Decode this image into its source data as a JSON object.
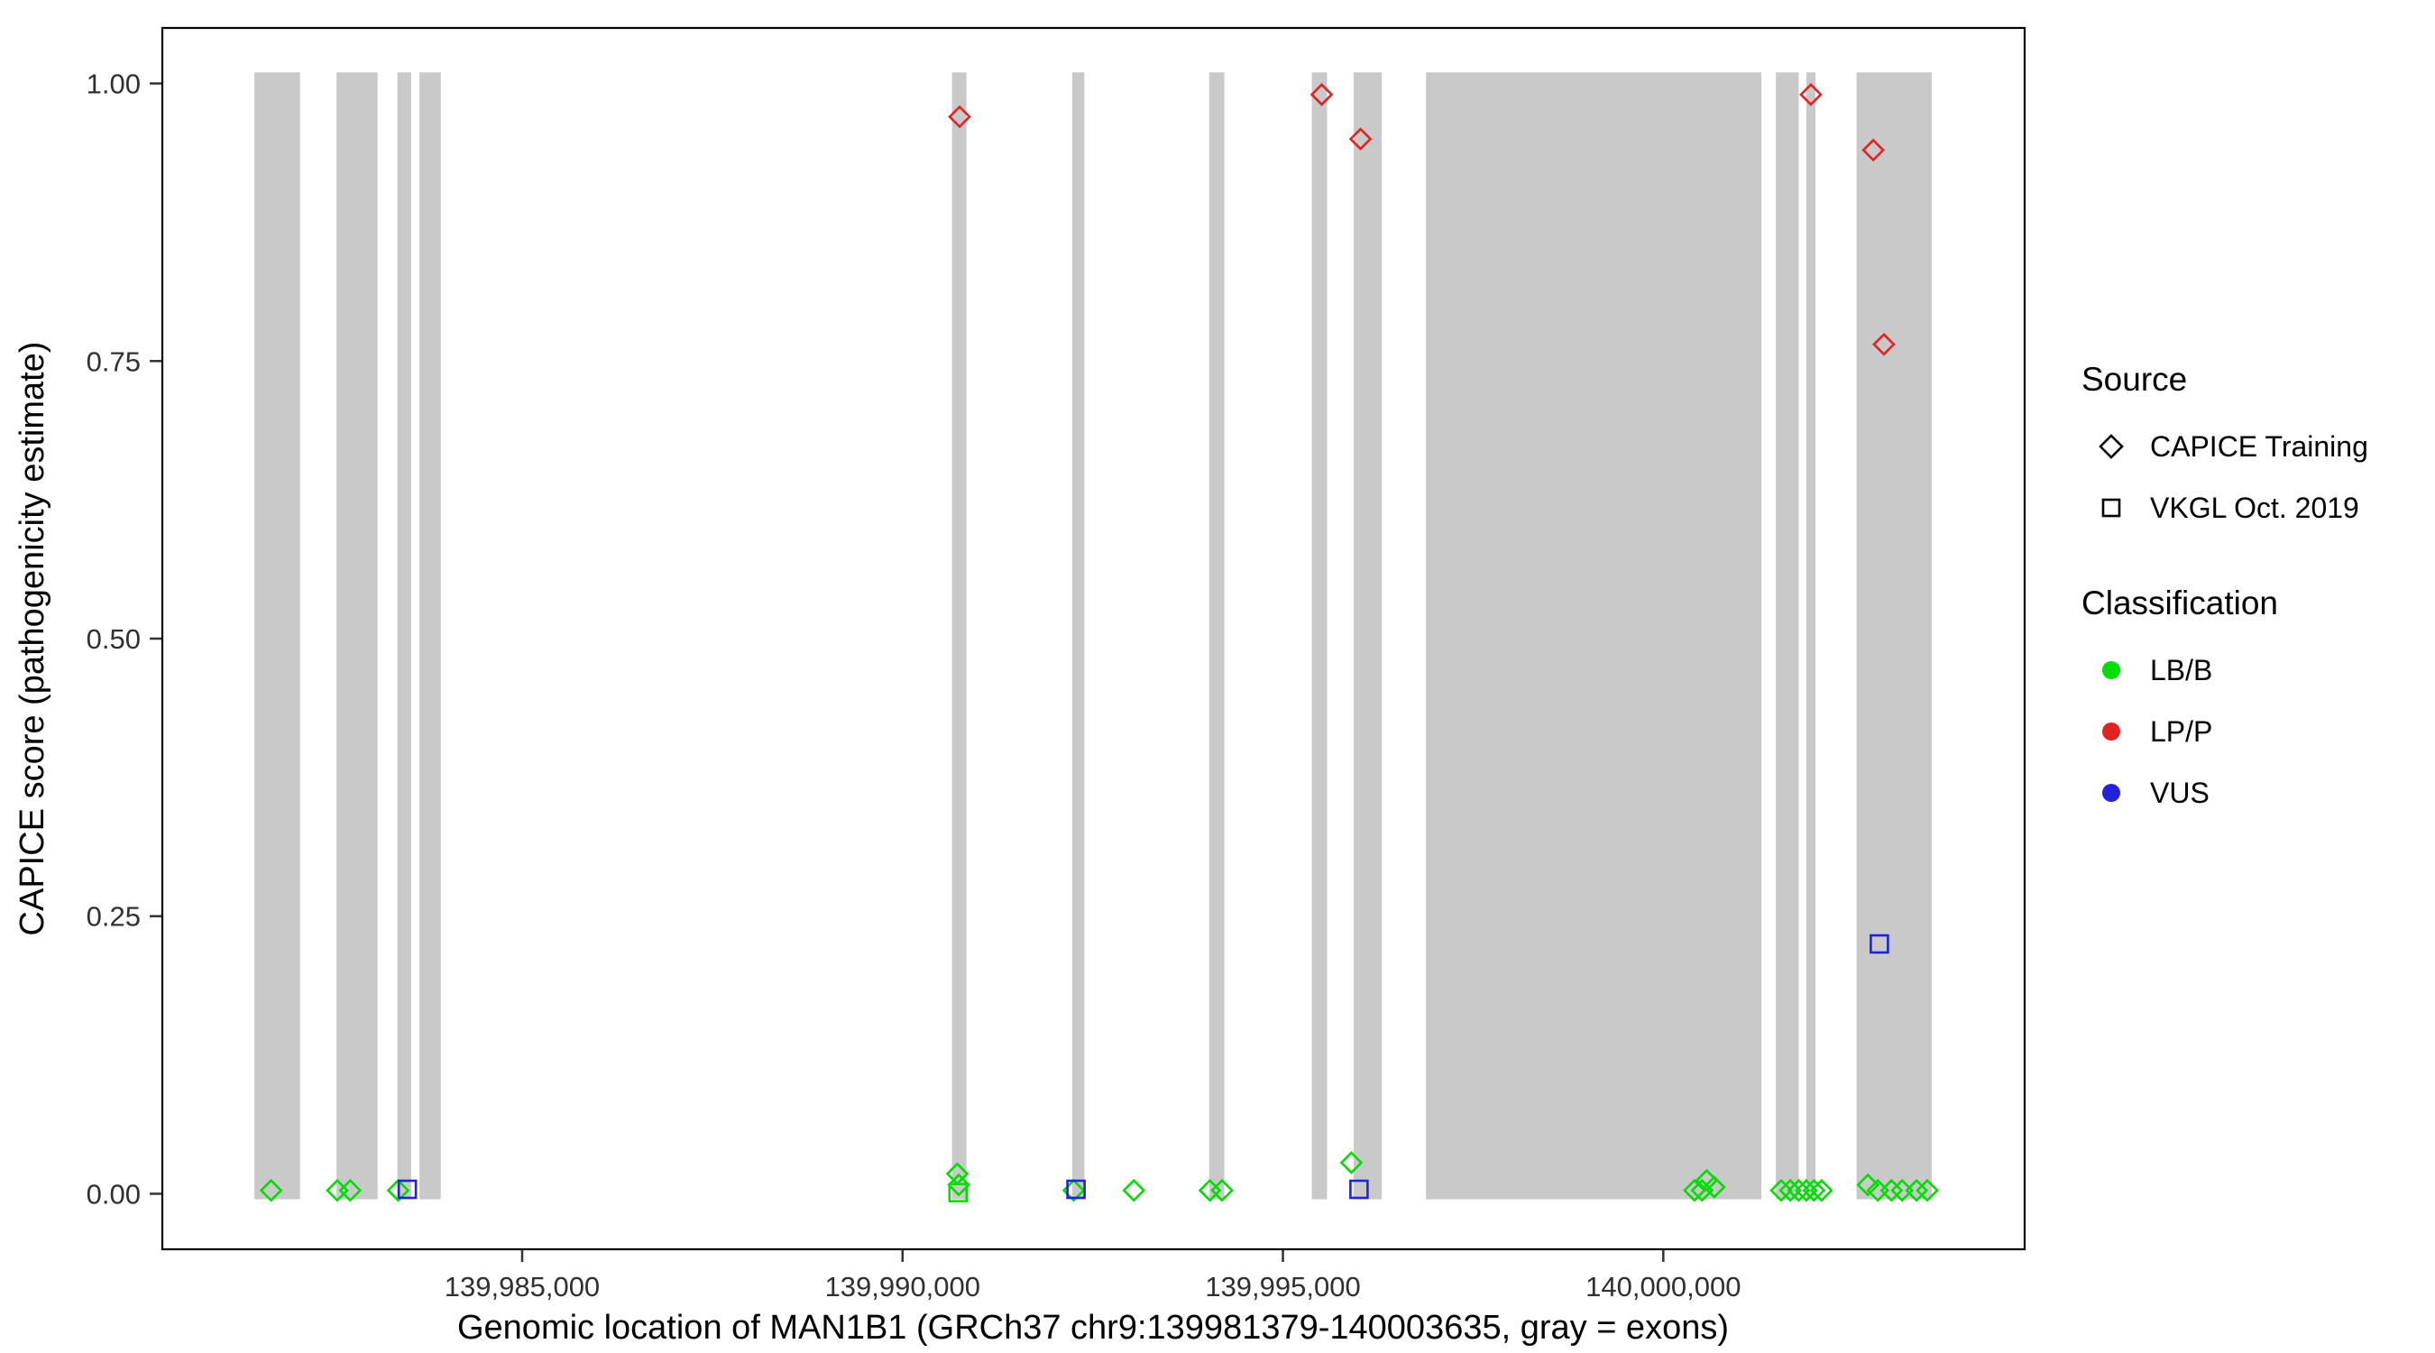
{
  "figure": {
    "background": "#ffffff",
    "panel_border": "#000000",
    "exon_color": "#c9c9c9",
    "tick_color": "#333333",
    "tick_label_color": "#303030"
  },
  "axes": {
    "x_label": "Genomic location of MAN1B1 (GRCh37 chr9:139981379-140003635, gray = exons)",
    "y_label": "CAPICE score (pathogenicity estimate)",
    "x_ticks": [
      {
        "value": 139985000,
        "label": "139,985,000"
      },
      {
        "value": 139990000,
        "label": "139,990,000"
      },
      {
        "value": 139995000,
        "label": "139,995,000"
      },
      {
        "value": 140000000,
        "label": "140,000,000"
      }
    ],
    "y_ticks": [
      {
        "value": 0.0,
        "label": "0.00"
      },
      {
        "value": 0.25,
        "label": "0.25"
      },
      {
        "value": 0.5,
        "label": "0.50"
      },
      {
        "value": 0.75,
        "label": "0.75"
      },
      {
        "value": 1.0,
        "label": "1.00"
      }
    ]
  },
  "legend": {
    "source": {
      "title": "Source",
      "items": [
        {
          "label": "CAPICE Training",
          "shape": "diamond"
        },
        {
          "label": "VKGL Oct. 2019",
          "shape": "square"
        }
      ]
    },
    "classification": {
      "title": "Classification",
      "items": [
        {
          "label": "LB/B",
          "color": "#00dd00"
        },
        {
          "label": "LP/P",
          "color": "#e32222"
        },
        {
          "label": "VUS",
          "color": "#2222dd"
        }
      ]
    }
  },
  "chart_data": {
    "type": "scatter",
    "title": "",
    "xlabel": "Genomic location of MAN1B1 (GRCh37 chr9:139981379-140003635, gray = exons)",
    "ylabel": "CAPICE score (pathogenicity estimate)",
    "x_domain": [
      139980270,
      140004750
    ],
    "y_domain": [
      -0.05,
      1.05
    ],
    "exon_y": [
      -0.005,
      1.01
    ],
    "grid": false,
    "legend_position": "right",
    "exons": [
      [
        139981480,
        139982080
      ],
      [
        139982560,
        139983100
      ],
      [
        139983360,
        139983540
      ],
      [
        139983650,
        139983930
      ],
      [
        139990650,
        139990840
      ],
      [
        139992230,
        139992390
      ],
      [
        139994030,
        139994230
      ],
      [
        139995380,
        139995580
      ],
      [
        139995930,
        139996300
      ],
      [
        139996880,
        140001290
      ],
      [
        140001480,
        140001780
      ],
      [
        140001880,
        140002000
      ],
      [
        140002540,
        140003530
      ]
    ],
    "points": [
      {
        "x": 139981700,
        "y": 0.003,
        "source": "CAPICE Training",
        "classification": "LB/B"
      },
      {
        "x": 139982570,
        "y": 0.003,
        "source": "CAPICE Training",
        "classification": "LB/B"
      },
      {
        "x": 139982740,
        "y": 0.003,
        "source": "CAPICE Training",
        "classification": "LB/B"
      },
      {
        "x": 139983370,
        "y": 0.003,
        "source": "CAPICE Training",
        "classification": "LB/B"
      },
      {
        "x": 139990720,
        "y": 0.018,
        "source": "CAPICE Training",
        "classification": "LB/B"
      },
      {
        "x": 139990740,
        "y": 0.008,
        "source": "CAPICE Training",
        "classification": "LB/B"
      },
      {
        "x": 139990730,
        "y": 0.001,
        "source": "VKGL Oct. 2019",
        "classification": "LB/B"
      },
      {
        "x": 139992250,
        "y": 0.003,
        "source": "CAPICE Training",
        "classification": "LB/B"
      },
      {
        "x": 139993040,
        "y": 0.003,
        "source": "CAPICE Training",
        "classification": "LB/B"
      },
      {
        "x": 139994040,
        "y": 0.003,
        "source": "CAPICE Training",
        "classification": "LB/B"
      },
      {
        "x": 139994200,
        "y": 0.003,
        "source": "CAPICE Training",
        "classification": "LB/B"
      },
      {
        "x": 139995900,
        "y": 0.028,
        "source": "CAPICE Training",
        "classification": "LB/B"
      },
      {
        "x": 140000410,
        "y": 0.003,
        "source": "CAPICE Training",
        "classification": "LB/B"
      },
      {
        "x": 140000510,
        "y": 0.003,
        "source": "CAPICE Training",
        "classification": "LB/B"
      },
      {
        "x": 140000570,
        "y": 0.012,
        "source": "CAPICE Training",
        "classification": "LB/B"
      },
      {
        "x": 140000670,
        "y": 0.006,
        "source": "CAPICE Training",
        "classification": "LB/B"
      },
      {
        "x": 140001550,
        "y": 0.003,
        "source": "CAPICE Training",
        "classification": "LB/B"
      },
      {
        "x": 140001670,
        "y": 0.003,
        "source": "CAPICE Training",
        "classification": "LB/B"
      },
      {
        "x": 140001780,
        "y": 0.003,
        "source": "CAPICE Training",
        "classification": "LB/B"
      },
      {
        "x": 140001880,
        "y": 0.003,
        "source": "CAPICE Training",
        "classification": "LB/B"
      },
      {
        "x": 140001980,
        "y": 0.003,
        "source": "CAPICE Training",
        "classification": "LB/B"
      },
      {
        "x": 140002080,
        "y": 0.003,
        "source": "CAPICE Training",
        "classification": "LB/B"
      },
      {
        "x": 140002690,
        "y": 0.008,
        "source": "CAPICE Training",
        "classification": "LB/B"
      },
      {
        "x": 140002820,
        "y": 0.003,
        "source": "CAPICE Training",
        "classification": "LB/B"
      },
      {
        "x": 140003000,
        "y": 0.003,
        "source": "CAPICE Training",
        "classification": "LB/B"
      },
      {
        "x": 140003140,
        "y": 0.003,
        "source": "CAPICE Training",
        "classification": "LB/B"
      },
      {
        "x": 140003330,
        "y": 0.003,
        "source": "CAPICE Training",
        "classification": "LB/B"
      },
      {
        "x": 140003470,
        "y": 0.003,
        "source": "CAPICE Training",
        "classification": "LB/B"
      },
      {
        "x": 139983490,
        "y": 0.004,
        "source": "VKGL Oct. 2019",
        "classification": "VUS"
      },
      {
        "x": 139992280,
        "y": 0.004,
        "source": "VKGL Oct. 2019",
        "classification": "VUS"
      },
      {
        "x": 139996000,
        "y": 0.004,
        "source": "VKGL Oct. 2019",
        "classification": "VUS"
      },
      {
        "x": 140002840,
        "y": 0.225,
        "source": "VKGL Oct. 2019",
        "classification": "VUS"
      },
      {
        "x": 139990750,
        "y": 0.97,
        "source": "CAPICE Training",
        "classification": "LP/P"
      },
      {
        "x": 139995510,
        "y": 0.99,
        "source": "CAPICE Training",
        "classification": "LP/P"
      },
      {
        "x": 139996020,
        "y": 0.95,
        "source": "CAPICE Training",
        "classification": "LP/P"
      },
      {
        "x": 140001940,
        "y": 0.99,
        "source": "CAPICE Training",
        "classification": "LP/P"
      },
      {
        "x": 140002760,
        "y": 0.94,
        "source": "CAPICE Training",
        "classification": "LP/P"
      },
      {
        "x": 140002900,
        "y": 0.765,
        "source": "CAPICE Training",
        "classification": "LP/P"
      }
    ]
  }
}
